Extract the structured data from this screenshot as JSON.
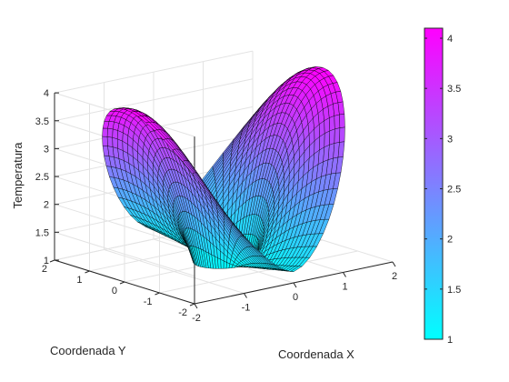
{
  "chart_data": {
    "type": "surface3d",
    "title": "",
    "xlabel": "Coordenada X",
    "ylabel": "Coordenada Y",
    "zlabel": "Temperatura",
    "xlim": [
      -2,
      2
    ],
    "ylim": [
      -2,
      2
    ],
    "zlim": [
      1,
      4
    ],
    "x_ticks": [
      "-2",
      "-1",
      "0",
      "1",
      "2"
    ],
    "y_ticks": [
      "-2",
      "-1",
      "0",
      "1",
      "2"
    ],
    "z_ticks": [
      "1",
      "1.5",
      "2",
      "2.5",
      "3",
      "3.5",
      "4"
    ],
    "colorbar": {
      "min": 1,
      "max": 4.1,
      "ticks": [
        "1",
        "1.5",
        "2",
        "2.5",
        "3",
        "3.5",
        "4"
      ],
      "colormap": [
        "#00ffff",
        "#ff00ff"
      ]
    },
    "surface": {
      "description": "Saddle-shaped surface with two raised lobes over a ring domain",
      "r_range": [
        0.5,
        2
      ],
      "z_range": [
        1,
        4.1
      ],
      "edge_color": "#000000"
    },
    "grid": true,
    "view": "3d-default"
  }
}
